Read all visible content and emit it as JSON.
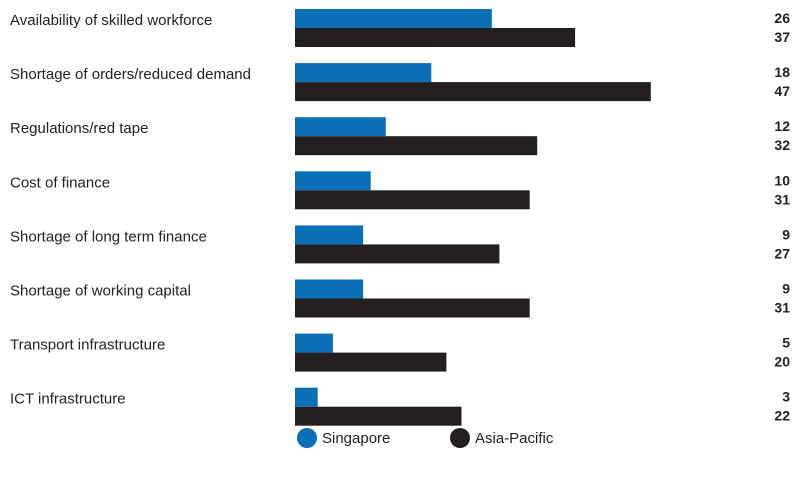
{
  "chart_data": {
    "type": "bar",
    "orientation": "horizontal",
    "categories": [
      "Availability of skilled workforce",
      "Shortage of orders/reduced demand",
      "Regulations/red tape",
      "Cost of finance",
      "Shortage of long term finance",
      "Shortage of working capital",
      "Transport infrastructure",
      "ICT infrastructure"
    ],
    "series": [
      {
        "name": "Singapore",
        "color": "#0a6fb6",
        "values": [
          26,
          18,
          12,
          10,
          9,
          9,
          5,
          3
        ]
      },
      {
        "name": "Asia-Pacific",
        "color": "#231f20",
        "values": [
          37,
          47,
          32,
          31,
          27,
          31,
          20,
          22
        ]
      }
    ],
    "title": "",
    "xlabel": "",
    "ylabel": "",
    "xlim": [
      0,
      50
    ],
    "grid": false,
    "value_labels": "right-aligned",
    "legend_position": "bottom-center"
  }
}
